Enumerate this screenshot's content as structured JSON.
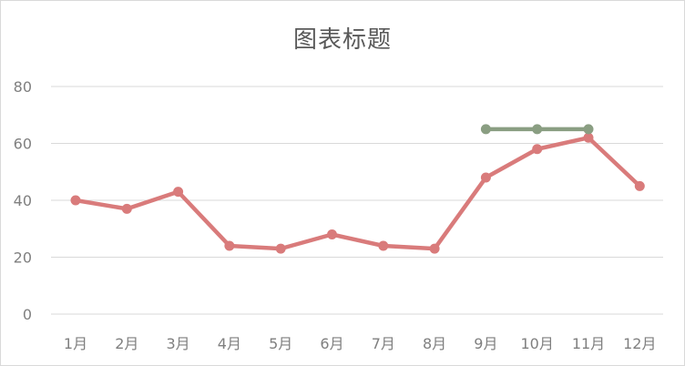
{
  "chart_data": {
    "type": "line",
    "title": "图表标题",
    "categories": [
      "1月",
      "2月",
      "3月",
      "4月",
      "5月",
      "6月",
      "7月",
      "8月",
      "9月",
      "10月",
      "11月",
      "12月"
    ],
    "ylim": [
      0,
      80
    ],
    "yticks": [
      0,
      20,
      40,
      60,
      80
    ],
    "grid": true,
    "series": [
      {
        "color": "#d97b7b",
        "values": [
          40,
          37,
          43,
          24,
          23,
          28,
          24,
          23,
          48,
          58,
          62,
          45
        ]
      },
      {
        "color": "#8a9e82",
        "values": [
          null,
          null,
          null,
          null,
          null,
          null,
          null,
          null,
          65,
          65,
          65,
          null
        ]
      }
    ]
  }
}
